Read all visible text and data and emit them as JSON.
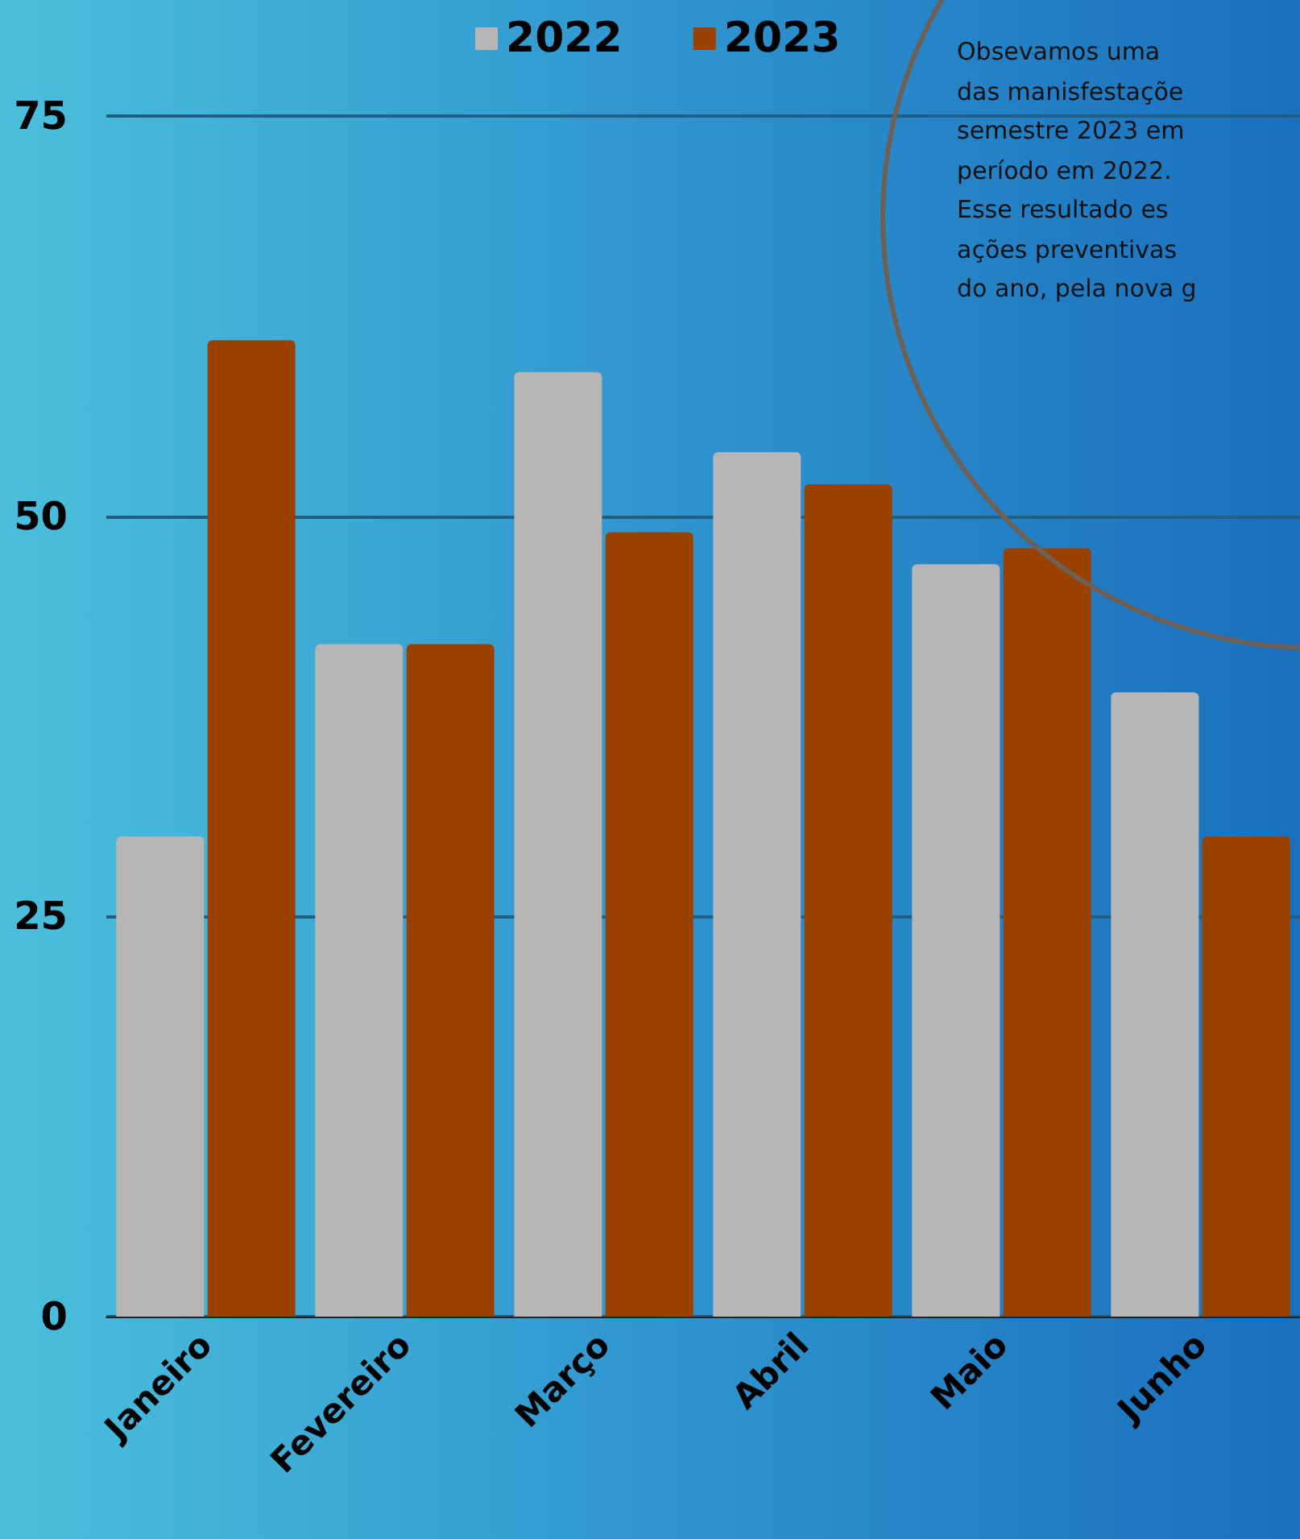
{
  "chart_data": {
    "type": "bar",
    "categories": [
      "Janeiro",
      "Fevereiro",
      "Março",
      "Abril",
      "Maio",
      "Junho"
    ],
    "series": [
      {
        "name": "2022",
        "color": "#b7b5b5",
        "values": [
          30,
          42,
          59,
          54,
          47,
          39
        ]
      },
      {
        "name": "2023",
        "color": "#9a4100",
        "values": [
          61,
          42,
          49,
          52,
          48,
          30
        ]
      }
    ],
    "ylim": [
      0,
      75
    ],
    "yticks": [
      0,
      25,
      50,
      75
    ],
    "grid": "y",
    "legend": "top",
    "annotations": [
      "Obsevamos uma",
      "das manisfestaçõe",
      "semestre 2023 em",
      "período em 2022.",
      "Esse resultado es",
      "ações preventivas",
      "do ano, pela nova g"
    ]
  }
}
